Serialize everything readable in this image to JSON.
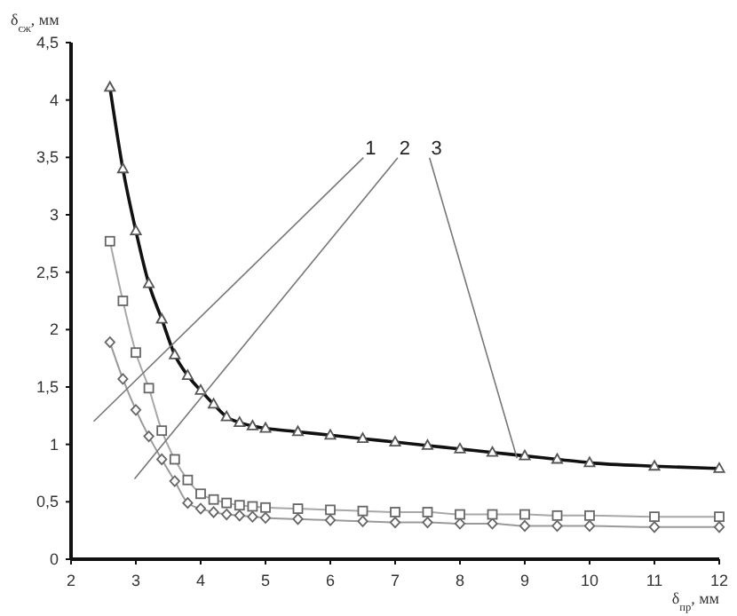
{
  "chart_data": {
    "type": "line",
    "xlabel": "δ$_{пр}$, мм",
    "ylabel": "δ$_{сж}$, мм",
    "x": [
      2.6,
      2.8,
      3.0,
      3.2,
      3.4,
      3.6,
      3.8,
      4.0,
      4.2,
      4.4,
      4.6,
      4.8,
      5.0,
      5.5,
      6.0,
      6.5,
      7.0,
      7.5,
      8.0,
      8.5,
      9.0,
      9.5,
      10.0,
      11.0,
      12.0
    ],
    "series": [
      {
        "name": "1",
        "color": "#9a9a9a",
        "marker": "diamond",
        "values": [
          1.89,
          1.57,
          1.3,
          1.07,
          0.87,
          0.68,
          0.49,
          0.44,
          0.41,
          0.39,
          0.38,
          0.37,
          0.36,
          0.35,
          0.34,
          0.33,
          0.32,
          0.32,
          0.31,
          0.31,
          0.29,
          0.29,
          0.29,
          0.28,
          0.28
        ]
      },
      {
        "name": "2",
        "color": "#a8a8a8",
        "marker": "square",
        "values": [
          2.77,
          2.25,
          1.8,
          1.49,
          1.12,
          0.87,
          0.69,
          0.57,
          0.52,
          0.49,
          0.47,
          0.46,
          0.45,
          0.44,
          0.43,
          0.42,
          0.41,
          0.41,
          0.39,
          0.39,
          0.39,
          0.38,
          0.38,
          0.37,
          0.37
        ]
      },
      {
        "name": "3",
        "color": "#111111",
        "marker": "triangle",
        "values": [
          4.11,
          3.4,
          2.86,
          2.4,
          2.09,
          1.78,
          1.6,
          1.47,
          1.35,
          1.24,
          1.19,
          1.16,
          1.14,
          1.11,
          1.08,
          1.05,
          1.02,
          0.99,
          0.96,
          0.93,
          0.9,
          0.87,
          0.84,
          0.81,
          0.79
        ]
      }
    ],
    "xlim": [
      2,
      12
    ],
    "xticks": [
      2,
      3,
      4,
      5,
      6,
      7,
      8,
      9,
      10,
      11,
      12
    ],
    "ylim": [
      0,
      4.5
    ],
    "yticks": [
      0,
      {
        "value": 0.5,
        "label": "0,5"
      },
      1,
      {
        "value": 1.5,
        "label": "1,5"
      },
      2,
      {
        "value": 2.5,
        "label": "2,5"
      },
      3,
      {
        "value": 3.5,
        "label": "3,5"
      },
      4,
      {
        "value": 4.5,
        "label": "4,5"
      }
    ],
    "grid": false
  }
}
